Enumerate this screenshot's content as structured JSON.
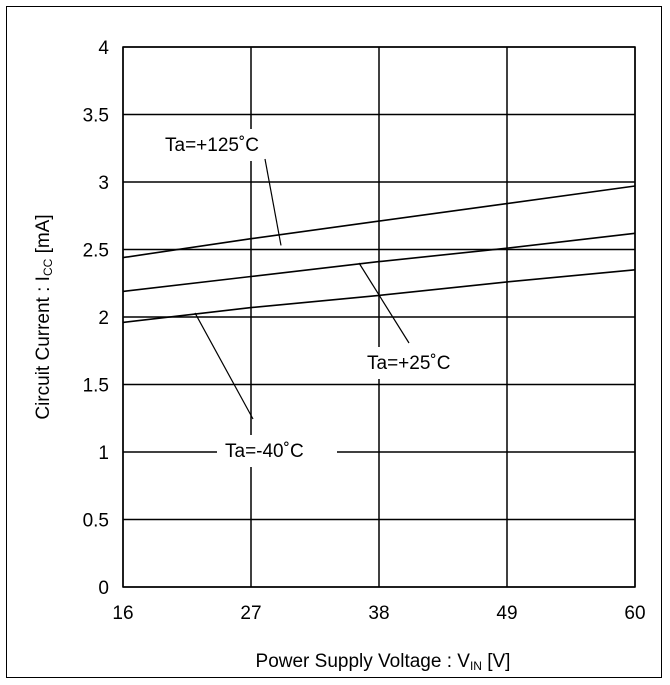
{
  "chart_data": {
    "type": "line",
    "xlabel": {
      "main": "Power Supply Voltage : V",
      "sub": "IN",
      "unit": " [V]"
    },
    "ylabel": {
      "main": "Circuit Current : I",
      "sub": "CC",
      "unit": " [mA]"
    },
    "xlim": [
      16,
      60
    ],
    "ylim": [
      0,
      4
    ],
    "xticks": [
      "16",
      "27",
      "38",
      "49",
      "60"
    ],
    "yticks": [
      "0",
      "0.5",
      "1",
      "1.5",
      "2",
      "2.5",
      "3",
      "3.5",
      "4"
    ],
    "grid": true,
    "series": [
      {
        "name": "Ta=+125˚C",
        "x": [
          16,
          27,
          38,
          49,
          60
        ],
        "y": [
          2.44,
          2.58,
          2.71,
          2.84,
          2.97
        ]
      },
      {
        "name": "Ta=+25˚C",
        "x": [
          16,
          27,
          38,
          49,
          60
        ],
        "y": [
          2.19,
          2.3,
          2.41,
          2.51,
          2.62
        ]
      },
      {
        "name": "Ta=-40˚C",
        "x": [
          16,
          27,
          38,
          49,
          60
        ],
        "y": [
          1.96,
          2.07,
          2.16,
          2.26,
          2.35
        ]
      }
    ],
    "annotations": [
      {
        "text": "Ta=+125˚C",
        "series": 0
      },
      {
        "text": "Ta=+25˚C",
        "series": 1
      },
      {
        "text": "Ta=-40˚C",
        "series": 2
      }
    ]
  }
}
